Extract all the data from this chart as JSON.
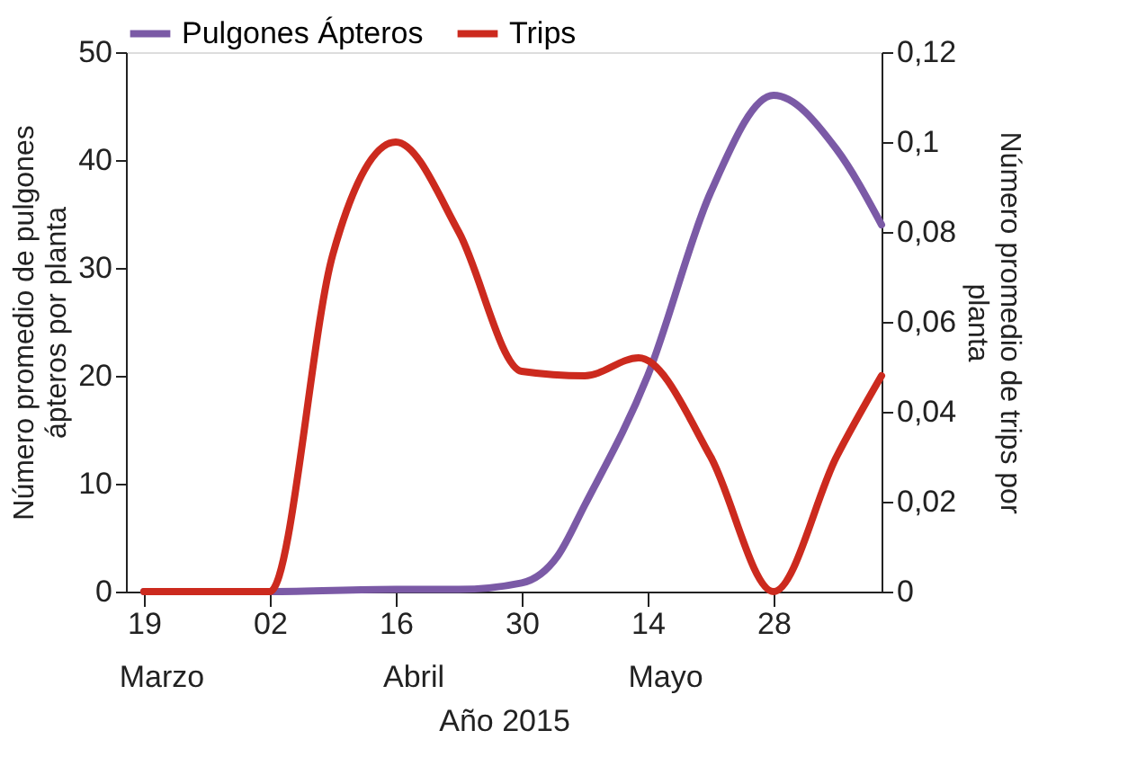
{
  "chart_data": {
    "type": "line",
    "xlabel": "Año 2015",
    "ylabel": "Número promedio de pulgones ápteros por planta",
    "y2label": "Número promedio de trips por planta",
    "xlim": [
      "2015-03-17",
      "2015-06-09"
    ],
    "xticks": [
      {
        "value": "2015-03-19",
        "label": "19"
      },
      {
        "value": "2015-04-02",
        "label": "02"
      },
      {
        "value": "2015-04-16",
        "label": "16"
      },
      {
        "value": "2015-04-30",
        "label": "30"
      },
      {
        "value": "2015-05-14",
        "label": "14"
      },
      {
        "value": "2015-05-28",
        "label": "28"
      }
    ],
    "ylim": [
      0,
      50
    ],
    "yticks": [
      0,
      10,
      20,
      30,
      40,
      50
    ],
    "y2lim": [
      0,
      0.12
    ],
    "y2ticks": [
      {
        "value": 0,
        "label": "0"
      },
      {
        "value": 0.02,
        "label": "0,02"
      },
      {
        "value": 0.04,
        "label": "0,04"
      },
      {
        "value": 0.06,
        "label": "0,06"
      },
      {
        "value": 0.08,
        "label": "0,08"
      },
      {
        "value": 0.1,
        "label": "0,1"
      },
      {
        "value": 0.12,
        "label": "0,12"
      }
    ],
    "series": [
      {
        "name": "Pulgones Ápteros",
        "color": "#7b5aa6",
        "x": [
          "2015-03-19",
          "2015-04-02",
          "2015-04-16",
          "2015-04-23",
          "2015-04-30",
          "2015-05-04",
          "2015-05-07",
          "2015-05-14",
          "2015-05-21",
          "2015-05-28",
          "2015-06-04",
          "2015-06-09"
        ],
        "values": [
          0,
          0,
          0.2,
          0.2,
          0.8,
          3.3,
          8,
          20,
          37,
          46,
          41,
          34
        ]
      },
      {
        "name": "Trips",
        "color": "#cc2a1e",
        "axis": "y2",
        "x": [
          "2015-03-19",
          "2015-04-02",
          "2015-04-09",
          "2015-04-16",
          "2015-04-23",
          "2015-04-30",
          "2015-05-07",
          "2015-05-13",
          "2015-05-21",
          "2015-05-28",
          "2015-06-04",
          "2015-06-09"
        ],
        "values": [
          0,
          0,
          0.075,
          0.1,
          0.08,
          0.049,
          0.048,
          0.052,
          0.03,
          0,
          0.03,
          0.048
        ]
      }
    ],
    "annotations": [
      "Marzo",
      "Abril",
      "Mayo"
    ],
    "legend": "top",
    "grid": false,
    "marker": "none",
    "line_style": "solid"
  }
}
